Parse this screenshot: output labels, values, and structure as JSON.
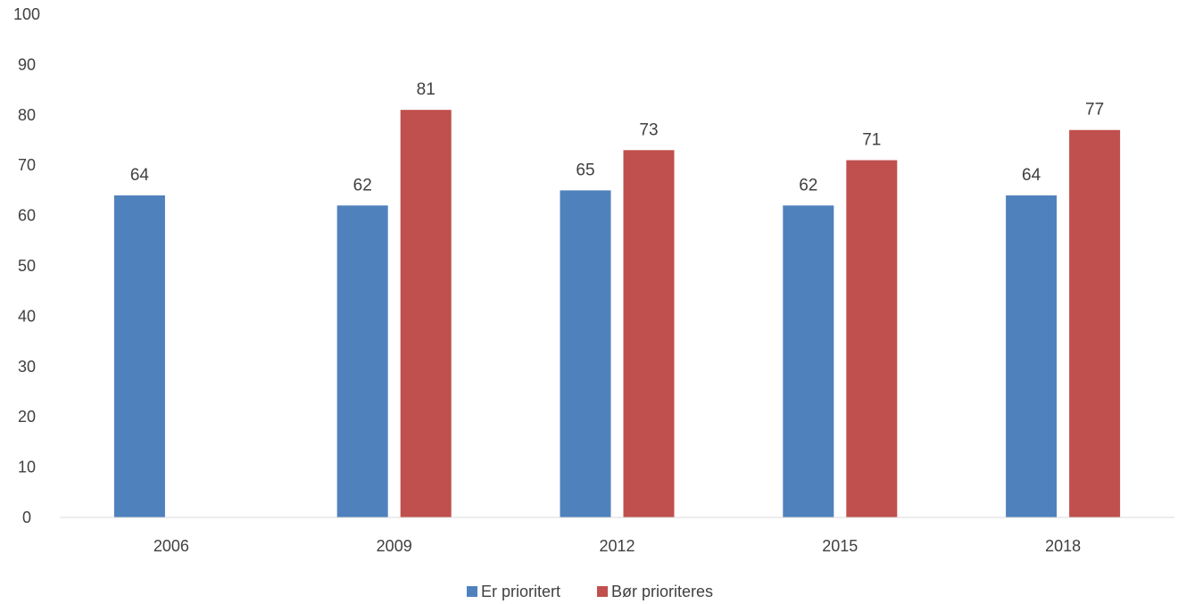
{
  "chart_data": {
    "type": "bar",
    "categories": [
      "2006",
      "2009",
      "2012",
      "2015",
      "2018"
    ],
    "series": [
      {
        "name": "Er prioritert",
        "values": [
          64,
          62,
          65,
          62,
          64
        ],
        "color": "#4f81bd"
      },
      {
        "name": "Bør prioriteres",
        "values": [
          null,
          81,
          73,
          71,
          77
        ],
        "color": "#c0504d"
      }
    ],
    "ylim": [
      0,
      100
    ],
    "yticks": [
      0,
      10,
      20,
      30,
      40,
      50,
      60,
      70,
      80,
      90,
      100
    ],
    "grid": false,
    "legend_position": "bottom",
    "data_labels": true
  }
}
